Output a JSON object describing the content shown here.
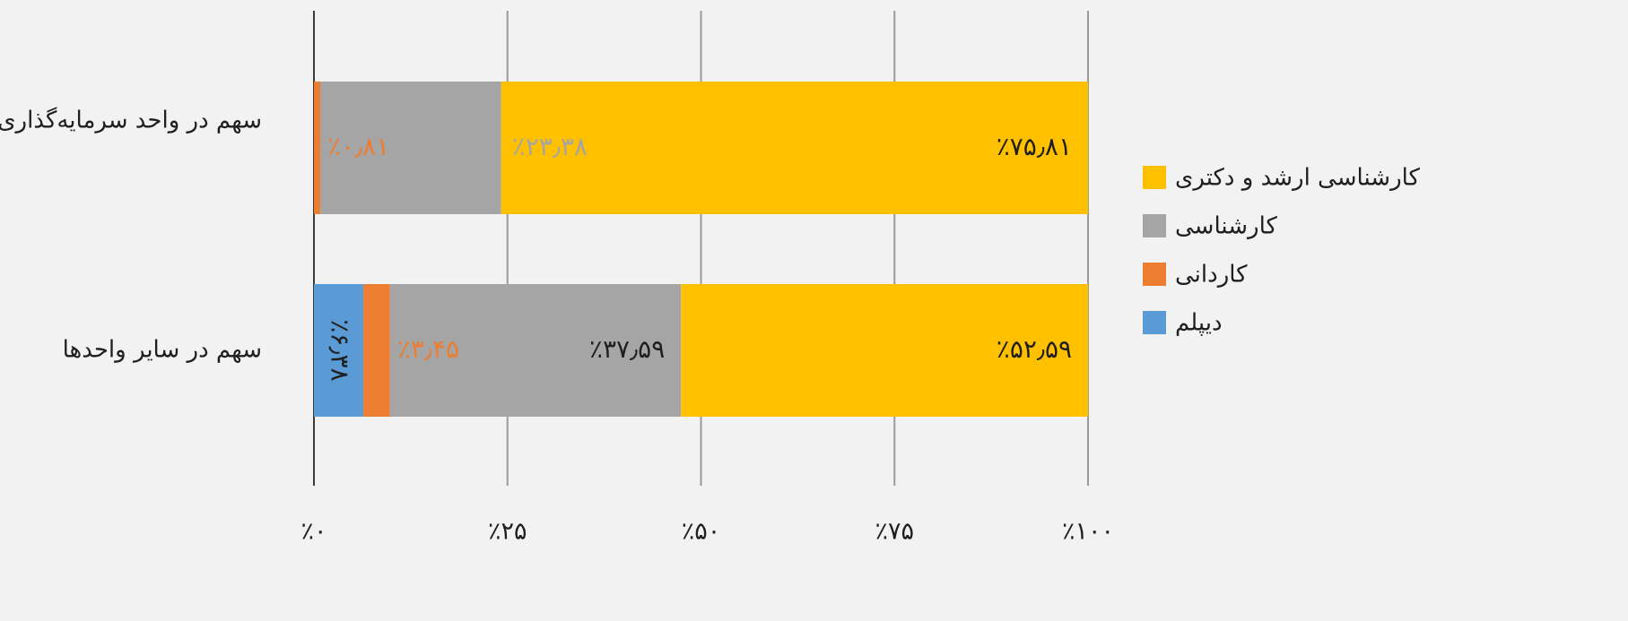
{
  "chart_data": {
    "type": "bar",
    "orientation": "horizontal",
    "stacked": true,
    "percent": true,
    "categories": [
      "سهم در واحد سرمایه‌گذاری",
      "سهم در سایر واحدها"
    ],
    "series": [
      {
        "name": "دیپلم",
        "color": "#5b9bd5",
        "values": [
          0,
          6.38
        ],
        "labels": [
          "",
          "٪۶٫۳۸"
        ],
        "label_color": "#1f1f1f"
      },
      {
        "name": "کاردانی",
        "color": "#ed7d31",
        "values": [
          0.81,
          3.45
        ],
        "labels": [
          "٪۰٫۸۱",
          "٪۳٫۴۵"
        ],
        "label_color": "#ed7d31"
      },
      {
        "name": "کارشناسی",
        "color": "#a5a5a5",
        "values": [
          23.38,
          37.59
        ],
        "labels": [
          "٪۲۳٫۳۸",
          "٪۳۷٫۵۹"
        ],
        "label_color": [
          "#a5a5a5",
          "#1f1f1f"
        ]
      },
      {
        "name": "کارشناسی ارشد و دکتری",
        "color": "#ffc000",
        "values": [
          75.81,
          52.59
        ],
        "labels": [
          "٪۷۵٫۸۱",
          "٪۵۲٫۵۹"
        ],
        "label_color": "#1f1f1f"
      }
    ],
    "xlim": [
      0,
      100
    ],
    "x_ticks": [
      0,
      25,
      50,
      75,
      100
    ],
    "x_tick_labels": [
      "٪۰",
      "٪۲۵",
      "٪۵۰",
      "٪۷۵",
      "٪۱۰۰"
    ],
    "grid": true,
    "legend_position": "right",
    "legend_order": [
      "کارشناسی ارشد و دکتری",
      "کارشناسی",
      "کاردانی",
      "دیپلم"
    ]
  }
}
